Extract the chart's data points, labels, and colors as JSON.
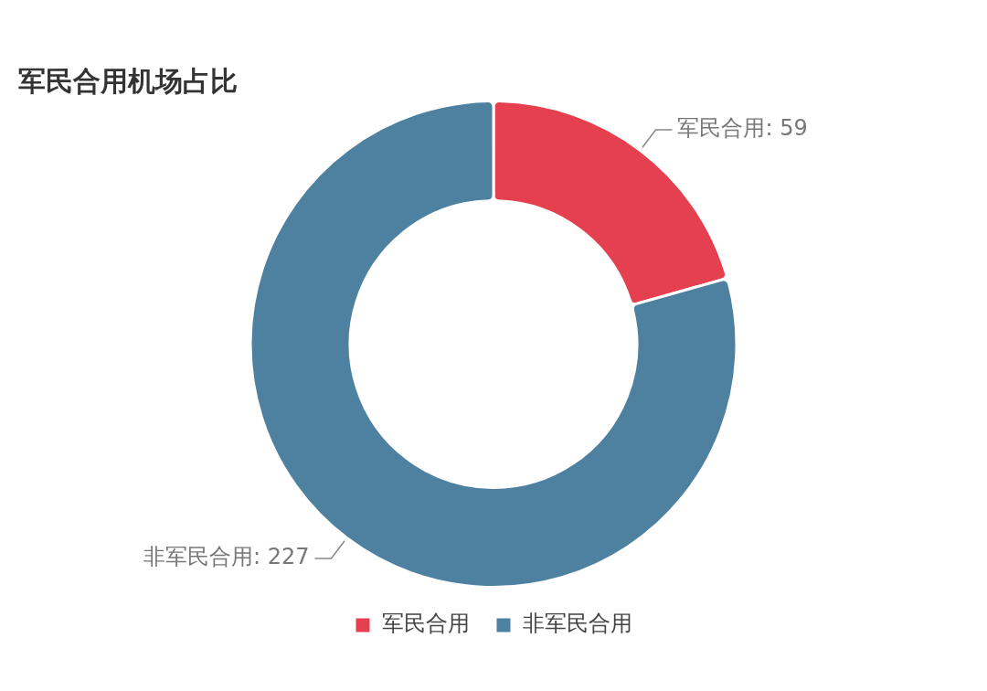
{
  "chart_data": {
    "type": "donut",
    "title": "军民合用机场占比",
    "categories": [
      "军民合用",
      "非军民合用"
    ],
    "values": [
      59,
      227
    ],
    "colors": [
      "#e5404f",
      "#4e81a0"
    ],
    "value_labels": [
      "军民合用: 59",
      "非军民合用: 227"
    ],
    "legend": "bottom"
  }
}
